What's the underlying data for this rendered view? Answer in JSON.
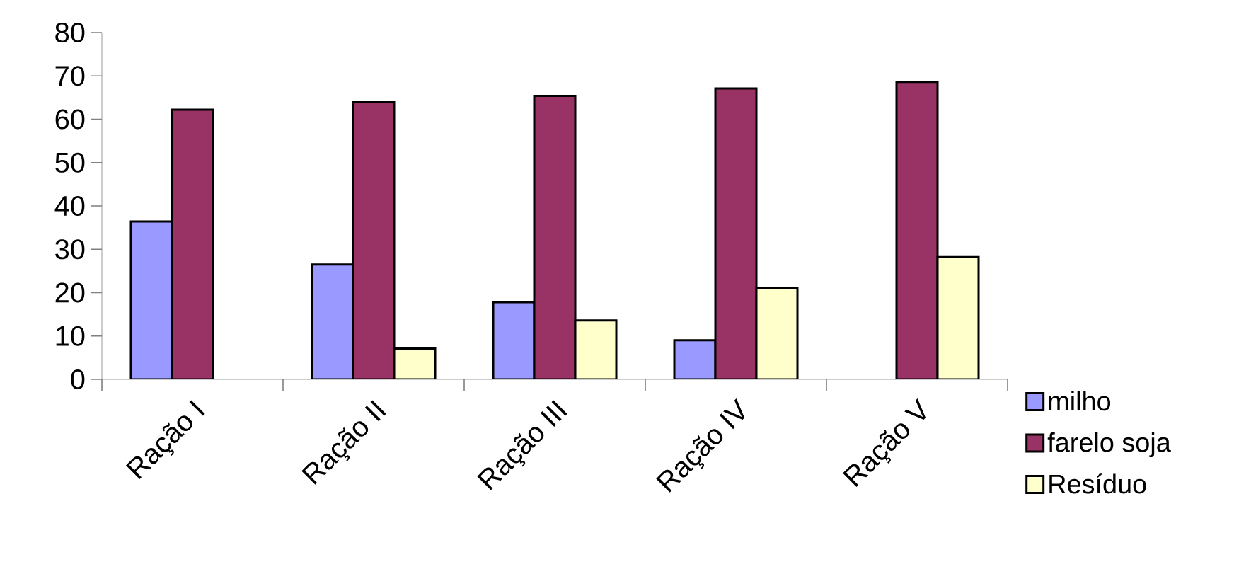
{
  "chart_data": {
    "type": "bar",
    "categories": [
      "Ração I",
      "Ração II",
      "Ração III",
      "Ração IV",
      "Ração V"
    ],
    "series": [
      {
        "name": "milho",
        "color": "#9999ff",
        "values": [
          36.4,
          26.5,
          17.8,
          9.0,
          null
        ]
      },
      {
        "name": "farelo soja",
        "color": "#993366",
        "values": [
          62.2,
          63.9,
          65.4,
          67.1,
          68.6
        ]
      },
      {
        "name": "Resíduo",
        "color": "#ffffcc",
        "values": [
          null,
          7.1,
          13.6,
          21.1,
          28.2
        ]
      }
    ],
    "ylim": [
      0,
      80
    ],
    "yticks": [
      0,
      10,
      20,
      30,
      40,
      50,
      60,
      70,
      80
    ],
    "grid": false,
    "legend": "bottom right"
  }
}
